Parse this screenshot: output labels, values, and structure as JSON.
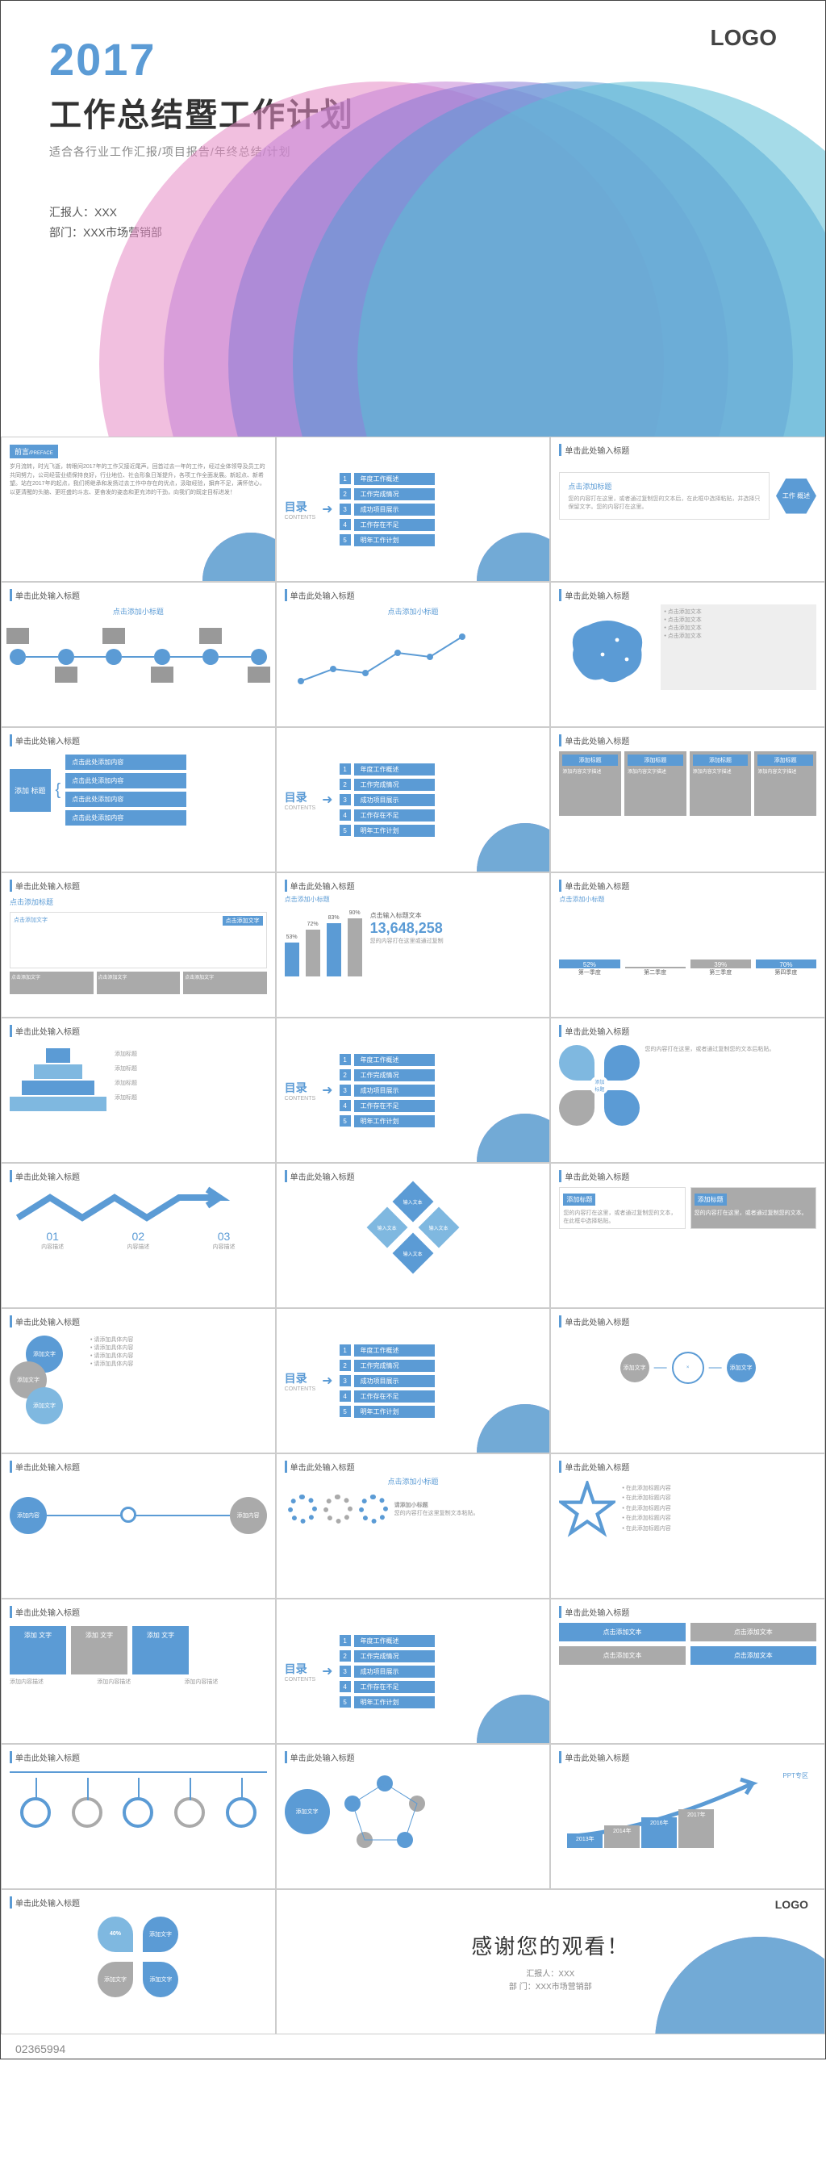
{
  "logo": "LOGO",
  "cover": {
    "year": "2017",
    "title": "工作总结暨工作计划",
    "subtitle": "适合各行业工作汇报/项目报告/年终总结/计划",
    "presenter_label": "汇报人：XXX",
    "dept_label": "部门：XXX市场营销部"
  },
  "slide_header": "单击此处输入标题",
  "preface": {
    "badge": "前言",
    "badge_en": "/PREFACE",
    "text": "岁月流转，时光飞逝，转眼间2017年的工作又接近尾声。回首过去一年的工作，经过全体领导及员工的共同努力，公司经营业绩保持良好，行业地位、社会形象日渐提升，各项工作全面发展。新起点、新希望。站在2017年的起点，我们将继承和发扬过去工作中存在的优点，汲取经验，摒弃不足，满怀信心，以更清醒的头脑、更旺盛的斗志、更奋发的姿态和更充沛的干劲，向我们的既定目标进发！"
  },
  "toc": {
    "label": "目录",
    "label_en": "CONTENTS",
    "arrow": "➜",
    "items": [
      {
        "n": "1",
        "t": "年度工作概述"
      },
      {
        "n": "2",
        "t": "工作完成情况"
      },
      {
        "n": "3",
        "t": "成功项目展示"
      },
      {
        "n": "4",
        "t": "工作存在不足"
      },
      {
        "n": "5",
        "t": "明年工作计划"
      }
    ]
  },
  "work_summary": {
    "hex": "工作\n概述",
    "title": "点击添加标题",
    "desc": "您的内容打在这里，或者通过复制您的文本后，在此框中选择粘贴，并选择只保留文字。您的内容打在这里。"
  },
  "timeline": {
    "title": "点击添加小标题",
    "nodes": 6
  },
  "linechart": {
    "title": "点击添加小标题",
    "points": [
      20,
      35,
      30,
      55,
      50,
      75
    ]
  },
  "map": {
    "lines": [
      "点击添加文本",
      "点击添加文本",
      "点击添加文本",
      "点击添加文本"
    ]
  },
  "bracket": {
    "label": "添加\n标题",
    "items": [
      "点击此处添加内容",
      "点击此处添加内容",
      "点击此处添加内容",
      "点击此处添加内容"
    ]
  },
  "box4": {
    "headers": [
      "添加标题",
      "添加标题",
      "添加标题",
      "添加标题"
    ]
  },
  "treechart": {
    "title": "点击添加文字",
    "boxes": [
      "点击添加文字",
      "点击添加文字",
      "点击添加文字"
    ]
  },
  "barchart": {
    "title": "点击添加小标题",
    "labels": [
      "53%",
      "72%",
      "83%",
      "90%"
    ],
    "values": [
      53,
      72,
      83,
      90
    ],
    "number": "13,648,258",
    "number_label": "点击输入标题文本"
  },
  "qbars": {
    "title": "点击添加小标题",
    "bars": [
      {
        "label": "第一季度",
        "pct": "52%",
        "v": 52,
        "blue": true
      },
      {
        "label": "第二季度",
        "pct": "",
        "v": 30,
        "blue": false
      },
      {
        "label": "第三季度",
        "pct": "39%",
        "v": 39,
        "blue": false
      },
      {
        "label": "第四季度",
        "pct": "70%",
        "v": 70,
        "blue": true
      }
    ]
  },
  "pyramid": {
    "levels": [
      "添加标题",
      "添加标题",
      "添加标题",
      "添加标题"
    ]
  },
  "clover": {
    "labels": [
      "添加\n内容",
      "添加\n内容",
      "添加\n内容",
      "添加\n内容"
    ]
  },
  "arrow3": {
    "nums": [
      "01",
      "02",
      "03"
    ]
  },
  "diamonds": {
    "labels": [
      "输入文本",
      "输入文本",
      "输入文本",
      "输入文本",
      "输入文本"
    ]
  },
  "twocol": {
    "t1": "添加标题",
    "t2": "添加标题"
  },
  "circles": {
    "labels": [
      "添加文字",
      "添加文字",
      "添加文字"
    ]
  },
  "flow": {
    "labels": [
      "添加文字",
      "添加文字",
      "添加文字",
      "添加文字"
    ]
  },
  "flow2": {
    "center": "添加内容",
    "outer": "添加内容"
  },
  "gears": {
    "title": "点击添加小标题",
    "sub": "请添加小标题"
  },
  "star": {
    "lines": [
      "在此添加标题内容",
      "在此添加标题内容",
      "在此添加标题内容",
      "在此添加标题内容",
      "在此添加标题内容"
    ]
  },
  "greenboxes": {
    "items": [
      "添加\n文字",
      "添加\n文字",
      "添加\n文字"
    ]
  },
  "grid4": {
    "items": [
      "点击添加文本",
      "点击添加文本",
      "点击添加文本",
      "点击添加文本"
    ]
  },
  "hanging": {
    "n": 5
  },
  "growth": {
    "years": [
      "2013年",
      "2014年",
      "2016年",
      "2017年"
    ],
    "label": "PPT专区",
    "sub": "添加文字"
  },
  "quad40": {
    "pct": "40%",
    "label": "添加文字"
  },
  "closing": {
    "thanks": "感谢您的观看！",
    "presenter": "汇报人：XXX",
    "dept": "部 门：XXX市场营销部"
  },
  "id": "02365994",
  "colors": {
    "primary": "#5b9bd5",
    "gray": "#aaa"
  }
}
